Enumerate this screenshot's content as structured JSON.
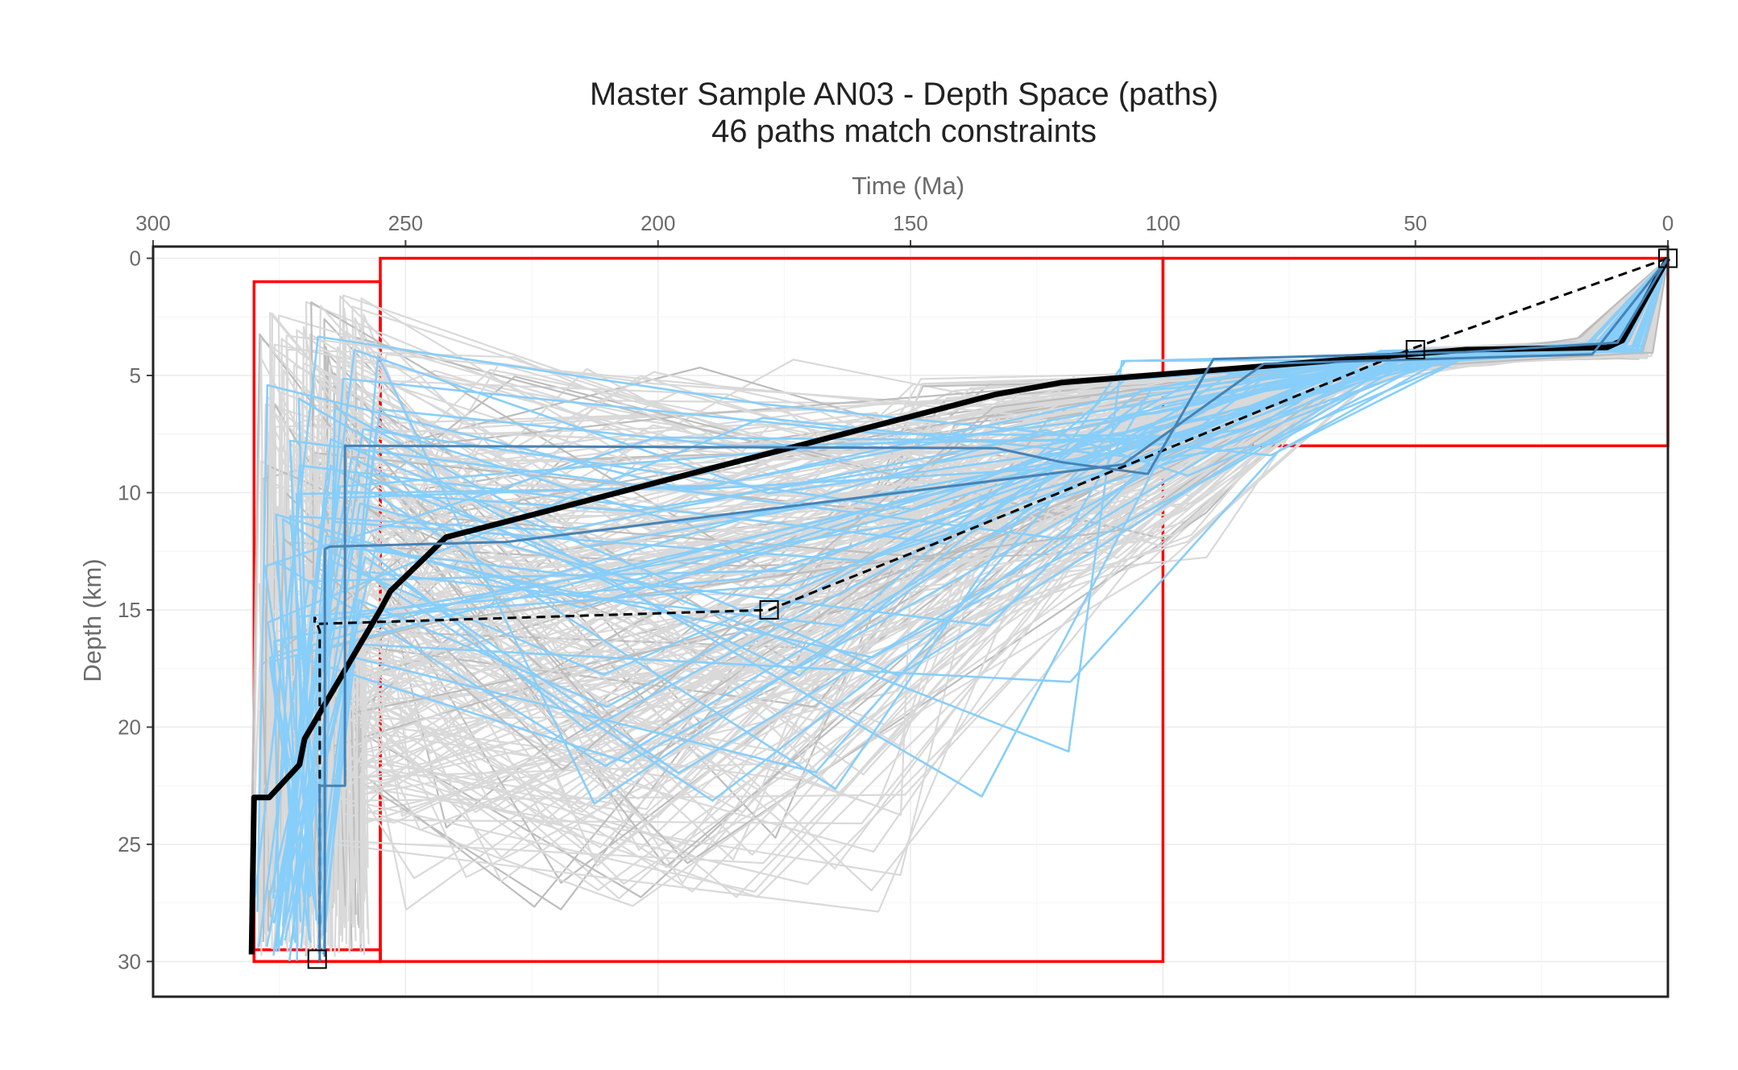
{
  "chart_data": {
    "type": "line",
    "title": "Master Sample AN03 - Depth Space (paths)",
    "subtitle": "46 paths match constraints",
    "xlabel": "Time (Ma)",
    "ylabel": "Depth (km)",
    "x_axis_position": "top",
    "x_reversed": true,
    "y_reversed": true,
    "xlim": [
      300,
      0
    ],
    "ylim": [
      -0.5,
      31.5
    ],
    "xticks": [
      300,
      250,
      200,
      150,
      100,
      50,
      0
    ],
    "yticks": [
      0,
      5,
      10,
      15,
      20,
      25,
      30
    ],
    "grid": true,
    "colors": {
      "rejected": "#d9d9d9",
      "rejected_dark": "#bdbdbd",
      "accepted": "#87cefa",
      "accepted_dark": "#4682b4",
      "best": "#000000",
      "constraint": "#ff0000",
      "frame": "#222222",
      "gridline": "#ebebeb"
    },
    "constraint_boxes": [
      {
        "time": [
          280,
          255
        ],
        "depth": [
          1,
          30
        ]
      },
      {
        "time": [
          255,
          100
        ],
        "depth": [
          0,
          30
        ]
      },
      {
        "time": [
          100,
          0
        ],
        "depth": [
          0,
          8
        ]
      },
      {
        "time": [
          280,
          255
        ],
        "depth": [
          29.5,
          30
        ]
      }
    ],
    "series": [
      {
        "role": "best-fit",
        "x": [
          0,
          9,
          12,
          40,
          120,
          133,
          242,
          253,
          255,
          270,
          271,
          277,
          280,
          280.5
        ],
        "y": [
          0,
          3.5,
          3.8,
          3.9,
          5.3,
          5.8,
          11.9,
          14.2,
          15,
          20.5,
          21.6,
          23,
          23,
          29.7
        ]
      },
      {
        "role": "weighted-mean",
        "x": [
          0,
          50,
          150,
          178,
          268,
          268,
          267,
          267
        ],
        "y": [
          0,
          3.8,
          12.6,
          15,
          15.6,
          15.3,
          15.9,
          30
        ]
      },
      {
        "role": "accepted-dark",
        "x": [
          0,
          10,
          40,
          90,
          103,
          120,
          133,
          262,
          262,
          267,
          267
        ],
        "y": [
          0,
          3.6,
          4.0,
          4.3,
          9.2,
          8.7,
          8.1,
          8.0,
          22.5,
          22.5,
          30
        ]
      },
      {
        "role": "accepted-dark",
        "x": [
          0,
          15,
          80,
          108,
          230,
          265,
          266,
          266
        ],
        "y": [
          0,
          4.1,
          4.5,
          8.8,
          12.1,
          12.3,
          12.4,
          29.8
        ]
      }
    ],
    "markers": [
      {
        "x": 0,
        "y": 0
      },
      {
        "x": 50,
        "y": 3.9
      },
      {
        "x": 178,
        "y": 15
      },
      {
        "x": 267.5,
        "y": 29.9
      }
    ]
  }
}
